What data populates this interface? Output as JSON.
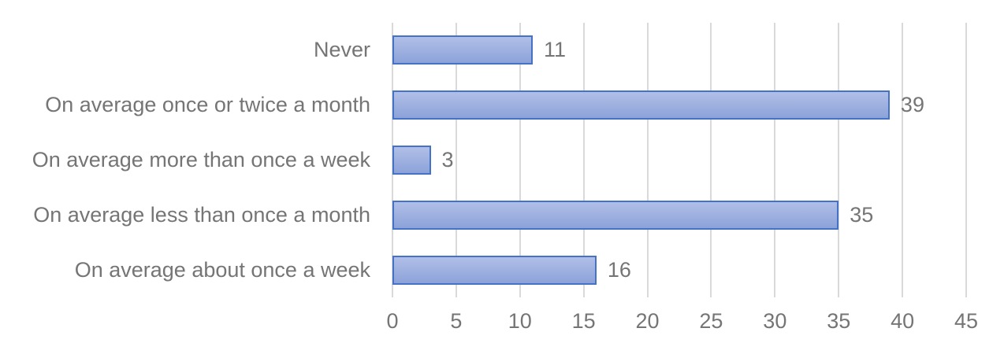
{
  "chart_data": {
    "type": "bar",
    "orientation": "horizontal",
    "title": "",
    "xlabel": "",
    "ylabel": "",
    "categories": [
      "Never",
      "On average once or twice a month",
      "On average more than once a week",
      "On average less than once a month",
      "On average about once a week"
    ],
    "values": [
      11,
      39,
      3,
      35,
      16
    ],
    "xlim": [
      0,
      45
    ],
    "xticks": [
      0,
      5,
      10,
      15,
      20,
      25,
      30,
      35,
      40,
      45
    ],
    "grid": true,
    "legend": false,
    "data_labels": true
  },
  "colors": {
    "background": "#ffffff",
    "bar_fill_top": "#b1bfe7",
    "bar_fill_bottom": "#8ca2d9",
    "bar_border": "#4472c4",
    "gridline": "#d9d9d9",
    "label_text": "#757575"
  }
}
